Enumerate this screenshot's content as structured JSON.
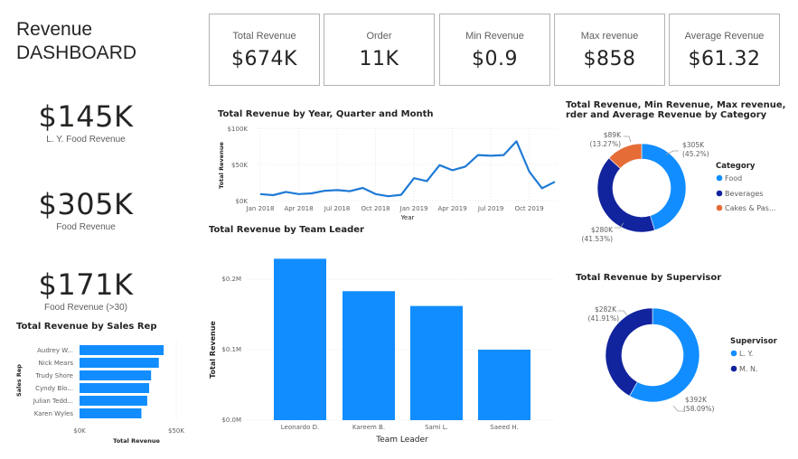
{
  "header": {
    "title_line1": "Revenue",
    "title_line2": "DASHBOARD"
  },
  "kpis": [
    {
      "label": "Total Revenue",
      "value": "$674K"
    },
    {
      "label": "Order",
      "value": "11K"
    },
    {
      "label": "Min Revenue",
      "value": "$0.9"
    },
    {
      "label": "Max revenue",
      "value": "$858"
    },
    {
      "label": "Average Revenue",
      "value": "$61.32"
    }
  ],
  "side_kpis": [
    {
      "value": "$145K",
      "label": "L. Y. Food Revenue"
    },
    {
      "value": "$305K",
      "label": "Food Revenue"
    },
    {
      "value": "$171K",
      "label": "Food Revenue (>30)"
    }
  ],
  "colors": {
    "primary": "#118DFF",
    "navy": "#12239E",
    "orange": "#E66C37",
    "line": "#1F7AD6",
    "grid": "#E8E8E8"
  },
  "chart_data": [
    {
      "id": "line",
      "type": "line",
      "title": "Total Revenue by Year, Quarter and Month",
      "xlabel": "Year",
      "ylabel": "Total Revenue",
      "ylim": [
        0,
        100000
      ],
      "yticks": [
        "$0K",
        "$50K",
        "$100K"
      ],
      "xtick_labels": [
        "Jan 2018",
        "Apr 2018",
        "Jul 2018",
        "Oct 2018",
        "Jan 2019",
        "Apr 2019",
        "Jul 2019",
        "Oct 2019"
      ],
      "x": [
        "Jan 2018",
        "Feb 2018",
        "Mar 2018",
        "Apr 2018",
        "May 2018",
        "Jun 2018",
        "Jul 2018",
        "Aug 2018",
        "Sep 2018",
        "Oct 2018",
        "Nov 2018",
        "Dec 2018",
        "Jan 2019",
        "Feb 2019",
        "Mar 2019",
        "Apr 2019",
        "May 2019",
        "Jun 2019",
        "Jul 2019",
        "Aug 2019",
        "Sep 2019",
        "Oct 2019",
        "Nov 2019",
        "Dec 2019"
      ],
      "values": [
        9000,
        7500,
        12000,
        9000,
        10000,
        13500,
        14500,
        13000,
        17500,
        9000,
        6000,
        8000,
        31000,
        27000,
        49000,
        42000,
        47000,
        63000,
        62000,
        63000,
        82000,
        40000,
        17000,
        26000
      ],
      "grid": true
    },
    {
      "id": "category",
      "type": "pie",
      "title_line1": "Total Revenue, Min Revenue, Max revenue,",
      "title_line2": "rder and Average Revenue by Category",
      "legend_title": "Category",
      "legend_position": "right",
      "slices": [
        {
          "name": "Food",
          "value": 305,
          "label": "$305K",
          "pct": "(45.2%)"
        },
        {
          "name": "Beverages",
          "value": 280,
          "label": "$280K",
          "pct": "(41.53%)"
        },
        {
          "name": "Cakes & Pas...",
          "value": 89,
          "label": "$89K",
          "pct": "(13.27%)"
        }
      ]
    },
    {
      "id": "teamleader",
      "type": "bar",
      "title": "Total Revenue by Team Leader",
      "xlabel": "Team Leader",
      "ylabel": "Total Revenue",
      "ylim": [
        0,
        0.24
      ],
      "yticks": [
        "$0.0M",
        "$0.1M",
        "$0.2M"
      ],
      "categories": [
        "Leonardo D.",
        "Kareem B.",
        "Sami L.",
        "Saeed H."
      ],
      "values": [
        0.229,
        0.183,
        0.162,
        0.1
      ],
      "grid": true
    },
    {
      "id": "salesrep",
      "type": "bar",
      "orientation": "horizontal",
      "title": "Total Revenue by Sales Rep",
      "xlabel": "Total Revenue",
      "ylabel": "Sales Rep",
      "xlim": [
        0,
        50000
      ],
      "xticks": [
        "$0K",
        "$50K"
      ],
      "categories": [
        "Audrey W...",
        "Nick Mears",
        "Trudy Shore",
        "Cyndy Blo...",
        "Julian Tedd...",
        "Karen Wyles"
      ],
      "values": [
        43500,
        41000,
        37000,
        36000,
        35000,
        32000
      ]
    },
    {
      "id": "supervisor",
      "type": "pie",
      "title": "Total Revenue by Supervisor",
      "legend_title": "Supervisor",
      "legend_position": "right",
      "slices": [
        {
          "name": "L. Y.",
          "value": 392,
          "label": "$392K",
          "pct": "(58.09%)"
        },
        {
          "name": "M. N.",
          "value": 282,
          "label": "$282K",
          "pct": "(41.91%)"
        }
      ]
    }
  ]
}
